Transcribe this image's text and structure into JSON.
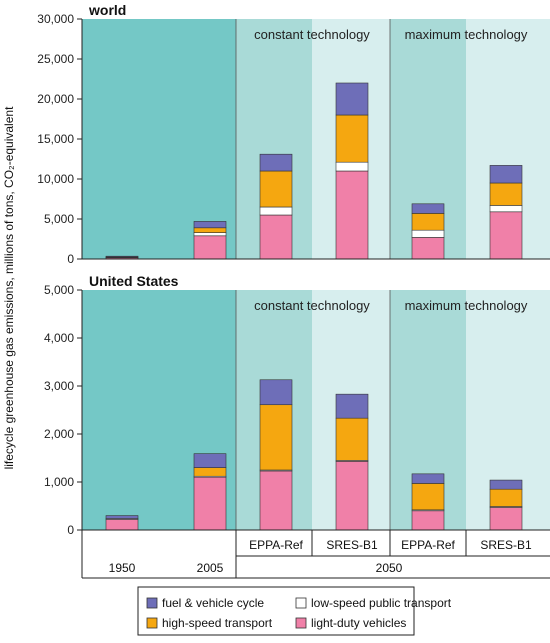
{
  "chart_data": {
    "type": "bar",
    "stacked": true,
    "ylabel": "lifecycle greenhouse gas emissions, millions of tons, CO₂-equivalent",
    "categories": [
      "1950",
      "2005",
      "EPPA-Ref",
      "SRES-B1",
      "EPPA-Ref",
      "SRES-B1"
    ],
    "period_labels": [
      "1950",
      "2005",
      "2050"
    ],
    "group_labels": [
      "constant technology",
      "maximum technology"
    ],
    "colors": {
      "history_bg": "#74c8c6",
      "constant_bg_a": "#a9dad7",
      "constant_bg_b": "#d7eeee",
      "maximum_bg_a": "#a9dad7",
      "maximum_bg_b": "#d7eeee",
      "light_duty": "#f080a8",
      "low_speed": "#ffffff",
      "high_speed": "#f5a710",
      "fuel_cycle": "#6e6eb8"
    },
    "series": [
      {
        "name": "light-duty vehicles",
        "key": "light_duty"
      },
      {
        "name": "low-speed public transport",
        "key": "low_speed"
      },
      {
        "name": "high-speed transport",
        "key": "high_speed"
      },
      {
        "name": "fuel & vehicle cycle",
        "key": "fuel_cycle"
      }
    ],
    "legend": {
      "position": "bottom",
      "order": [
        3,
        1,
        2,
        0
      ]
    },
    "panels": [
      {
        "title": "world",
        "ylim": [
          0,
          30000
        ],
        "yticks": [
          0,
          5000,
          10000,
          15000,
          20000,
          25000,
          30000
        ],
        "ytick_labels": [
          "0",
          "5,000",
          "10,000",
          "15,000",
          "20,000",
          "25,000",
          "30,000"
        ],
        "stacks": [
          {
            "light_duty": 150,
            "low_speed": 50,
            "high_speed": 50,
            "fuel_cycle": 100
          },
          {
            "light_duty": 2900,
            "low_speed": 400,
            "high_speed": 600,
            "fuel_cycle": 800
          },
          {
            "light_duty": 5500,
            "low_speed": 1000,
            "high_speed": 4500,
            "fuel_cycle": 2100
          },
          {
            "light_duty": 11000,
            "low_speed": 1100,
            "high_speed": 5900,
            "fuel_cycle": 4000
          },
          {
            "light_duty": 2700,
            "low_speed": 900,
            "high_speed": 2100,
            "fuel_cycle": 1200
          },
          {
            "light_duty": 5900,
            "low_speed": 800,
            "high_speed": 2800,
            "fuel_cycle": 2200
          }
        ]
      },
      {
        "title": "United States",
        "ylim": [
          0,
          5000
        ],
        "yticks": [
          0,
          1000,
          2000,
          3000,
          4000,
          5000
        ],
        "ytick_labels": [
          "0",
          "1,000",
          "2,000",
          "3,000",
          "4,000",
          "5,000"
        ],
        "stacks": [
          {
            "light_duty": 220,
            "low_speed": 20,
            "high_speed": 0,
            "fuel_cycle": 60
          },
          {
            "light_duty": 1100,
            "low_speed": 20,
            "high_speed": 180,
            "fuel_cycle": 290
          },
          {
            "light_duty": 1230,
            "low_speed": 20,
            "high_speed": 1360,
            "fuel_cycle": 520
          },
          {
            "light_duty": 1430,
            "low_speed": 20,
            "high_speed": 880,
            "fuel_cycle": 500
          },
          {
            "light_duty": 400,
            "low_speed": 20,
            "high_speed": 550,
            "fuel_cycle": 200
          },
          {
            "light_duty": 470,
            "low_speed": 20,
            "high_speed": 360,
            "fuel_cycle": 190
          }
        ]
      }
    ]
  }
}
